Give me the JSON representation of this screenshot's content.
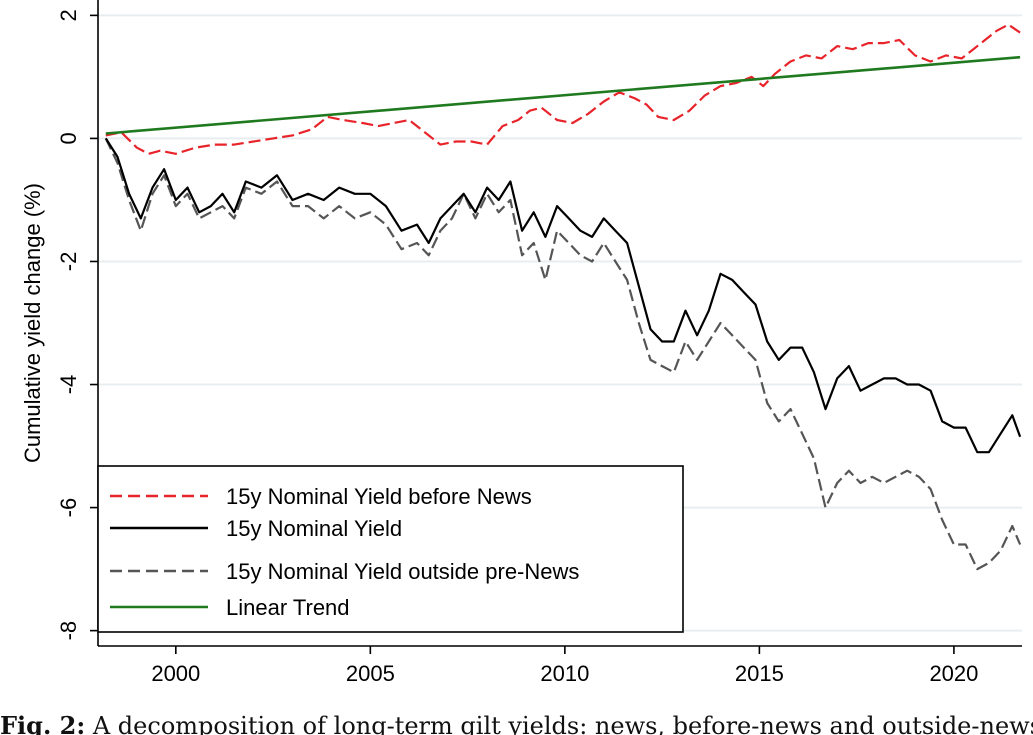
{
  "chart_data": {
    "type": "line",
    "title": "",
    "xlabel": "",
    "ylabel": "Cumulative yield change (%)",
    "xlim": [
      1998.0,
      2021.75
    ],
    "ylim": [
      -8.25,
      2.25
    ],
    "x_ticks": [
      2000,
      2005,
      2010,
      2015,
      2020
    ],
    "y_ticks": [
      2,
      0,
      -2,
      -4,
      -6,
      -8
    ],
    "grid": "horizontal",
    "legend_position": "bottom-left",
    "series": [
      {
        "name": "15y Nominal Yield before News",
        "color": "#e8242b",
        "style": "dashed",
        "x": [
          1998.2,
          1998.6,
          1999.0,
          1999.3,
          1999.6,
          2000.0,
          2000.5,
          2001.0,
          2001.5,
          2002.0,
          2002.5,
          2003.0,
          2003.5,
          2003.9,
          2004.3,
          2004.8,
          2005.2,
          2005.6,
          2006.0,
          2006.5,
          2006.8,
          2007.2,
          2007.6,
          2008.0,
          2008.4,
          2008.8,
          2009.1,
          2009.4,
          2009.8,
          2010.2,
          2010.6,
          2011.0,
          2011.4,
          2011.8,
          2012.1,
          2012.4,
          2012.8,
          2013.2,
          2013.6,
          2014.0,
          2014.4,
          2014.8,
          2015.1,
          2015.4,
          2015.8,
          2016.2,
          2016.6,
          2017.0,
          2017.4,
          2017.8,
          2018.2,
          2018.6,
          2019.0,
          2019.4,
          2019.8,
          2020.2,
          2020.5,
          2020.8,
          2021.1,
          2021.4,
          2021.7
        ],
        "y": [
          0.05,
          0.1,
          -0.15,
          -0.25,
          -0.2,
          -0.25,
          -0.15,
          -0.1,
          -0.1,
          -0.05,
          0.0,
          0.05,
          0.15,
          0.35,
          0.3,
          0.25,
          0.2,
          0.25,
          0.3,
          0.05,
          -0.1,
          -0.05,
          -0.05,
          -0.1,
          0.2,
          0.3,
          0.45,
          0.5,
          0.3,
          0.25,
          0.4,
          0.6,
          0.75,
          0.65,
          0.55,
          0.35,
          0.3,
          0.45,
          0.7,
          0.85,
          0.9,
          1.0,
          0.85,
          1.05,
          1.25,
          1.35,
          1.3,
          1.5,
          1.45,
          1.55,
          1.55,
          1.6,
          1.35,
          1.25,
          1.35,
          1.3,
          1.45,
          1.6,
          1.75,
          1.85,
          1.72
        ]
      },
      {
        "name": "15y Nominal Yield",
        "color": "#000000",
        "style": "solid",
        "x": [
          1998.2,
          1998.5,
          1998.8,
          1999.1,
          1999.4,
          1999.7,
          2000.0,
          2000.3,
          2000.6,
          2000.9,
          2001.2,
          2001.5,
          2001.8,
          2002.2,
          2002.6,
          2003.0,
          2003.4,
          2003.8,
          2004.2,
          2004.6,
          2005.0,
          2005.4,
          2005.8,
          2006.2,
          2006.5,
          2006.8,
          2007.1,
          2007.4,
          2007.7,
          2008.0,
          2008.3,
          2008.6,
          2008.9,
          2009.2,
          2009.5,
          2009.8,
          2010.1,
          2010.4,
          2010.7,
          2011.0,
          2011.3,
          2011.6,
          2011.9,
          2012.2,
          2012.5,
          2012.8,
          2013.1,
          2013.4,
          2013.7,
          2014.0,
          2014.3,
          2014.6,
          2014.9,
          2015.2,
          2015.5,
          2015.8,
          2016.1,
          2016.4,
          2016.7,
          2017.0,
          2017.3,
          2017.6,
          2017.9,
          2018.2,
          2018.5,
          2018.8,
          2019.1,
          2019.4,
          2019.7,
          2020.0,
          2020.3,
          2020.6,
          2020.9,
          2021.2,
          2021.5,
          2021.7
        ],
        "y": [
          0.0,
          -0.3,
          -0.9,
          -1.3,
          -0.8,
          -0.5,
          -1.0,
          -0.8,
          -1.2,
          -1.1,
          -0.9,
          -1.2,
          -0.7,
          -0.8,
          -0.6,
          -1.0,
          -0.9,
          -1.0,
          -0.8,
          -0.9,
          -0.9,
          -1.1,
          -1.5,
          -1.4,
          -1.7,
          -1.3,
          -1.1,
          -0.9,
          -1.2,
          -0.8,
          -1.0,
          -0.7,
          -1.5,
          -1.2,
          -1.6,
          -1.1,
          -1.3,
          -1.5,
          -1.6,
          -1.3,
          -1.5,
          -1.7,
          -2.4,
          -3.1,
          -3.3,
          -3.3,
          -2.8,
          -3.2,
          -2.8,
          -2.2,
          -2.3,
          -2.5,
          -2.7,
          -3.3,
          -3.6,
          -3.4,
          -3.4,
          -3.8,
          -4.4,
          -3.9,
          -3.7,
          -4.1,
          -4.0,
          -3.9,
          -3.9,
          -4.0,
          -4.0,
          -4.1,
          -4.6,
          -4.7,
          -4.7,
          -5.1,
          -5.1,
          -4.8,
          -4.5,
          -4.85
        ]
      },
      {
        "name": "15y Nominal Yield outside pre-News",
        "color": "#555555",
        "style": "dashed",
        "x": [
          1998.2,
          1998.5,
          1998.8,
          1999.1,
          1999.4,
          1999.7,
          2000.0,
          2000.3,
          2000.6,
          2000.9,
          2001.2,
          2001.5,
          2001.8,
          2002.2,
          2002.6,
          2003.0,
          2003.4,
          2003.8,
          2004.2,
          2004.6,
          2005.0,
          2005.4,
          2005.8,
          2006.2,
          2006.5,
          2006.8,
          2007.1,
          2007.4,
          2007.7,
          2008.0,
          2008.3,
          2008.6,
          2008.9,
          2009.2,
          2009.5,
          2009.8,
          2010.1,
          2010.4,
          2010.7,
          2011.0,
          2011.3,
          2011.6,
          2011.9,
          2012.2,
          2012.5,
          2012.8,
          2013.1,
          2013.4,
          2013.7,
          2014.0,
          2014.3,
          2014.6,
          2014.9,
          2015.2,
          2015.5,
          2015.8,
          2016.1,
          2016.4,
          2016.7,
          2017.0,
          2017.3,
          2017.6,
          2017.9,
          2018.2,
          2018.5,
          2018.8,
          2019.1,
          2019.4,
          2019.7,
          2020.0,
          2020.3,
          2020.6,
          2020.9,
          2021.2,
          2021.5,
          2021.7
        ],
        "y": [
          0.0,
          -0.4,
          -1.0,
          -1.5,
          -0.9,
          -0.6,
          -1.1,
          -0.9,
          -1.3,
          -1.2,
          -1.1,
          -1.3,
          -0.8,
          -0.9,
          -0.7,
          -1.1,
          -1.1,
          -1.3,
          -1.1,
          -1.3,
          -1.2,
          -1.4,
          -1.8,
          -1.7,
          -1.9,
          -1.5,
          -1.3,
          -0.9,
          -1.3,
          -0.9,
          -1.2,
          -1.0,
          -1.9,
          -1.7,
          -2.3,
          -1.5,
          -1.7,
          -1.9,
          -2.0,
          -1.7,
          -2.0,
          -2.3,
          -3.0,
          -3.6,
          -3.7,
          -3.8,
          -3.3,
          -3.6,
          -3.3,
          -3.0,
          -3.2,
          -3.4,
          -3.6,
          -4.3,
          -4.6,
          -4.4,
          -4.8,
          -5.2,
          -6.0,
          -5.6,
          -5.4,
          -5.6,
          -5.5,
          -5.6,
          -5.5,
          -5.4,
          -5.5,
          -5.7,
          -6.2,
          -6.6,
          -6.6,
          -7.0,
          -6.9,
          -6.7,
          -6.3,
          -6.6
        ]
      },
      {
        "name": "Linear Trend",
        "color": "#1f7a1f",
        "style": "solid",
        "x": [
          1998.2,
          2021.7
        ],
        "y": [
          0.08,
          1.32
        ]
      }
    ]
  },
  "caption": {
    "label": "Fig. 2:",
    "text": " A decomposition of long-term gilt yields: news, before-news and outside-news shift"
  }
}
